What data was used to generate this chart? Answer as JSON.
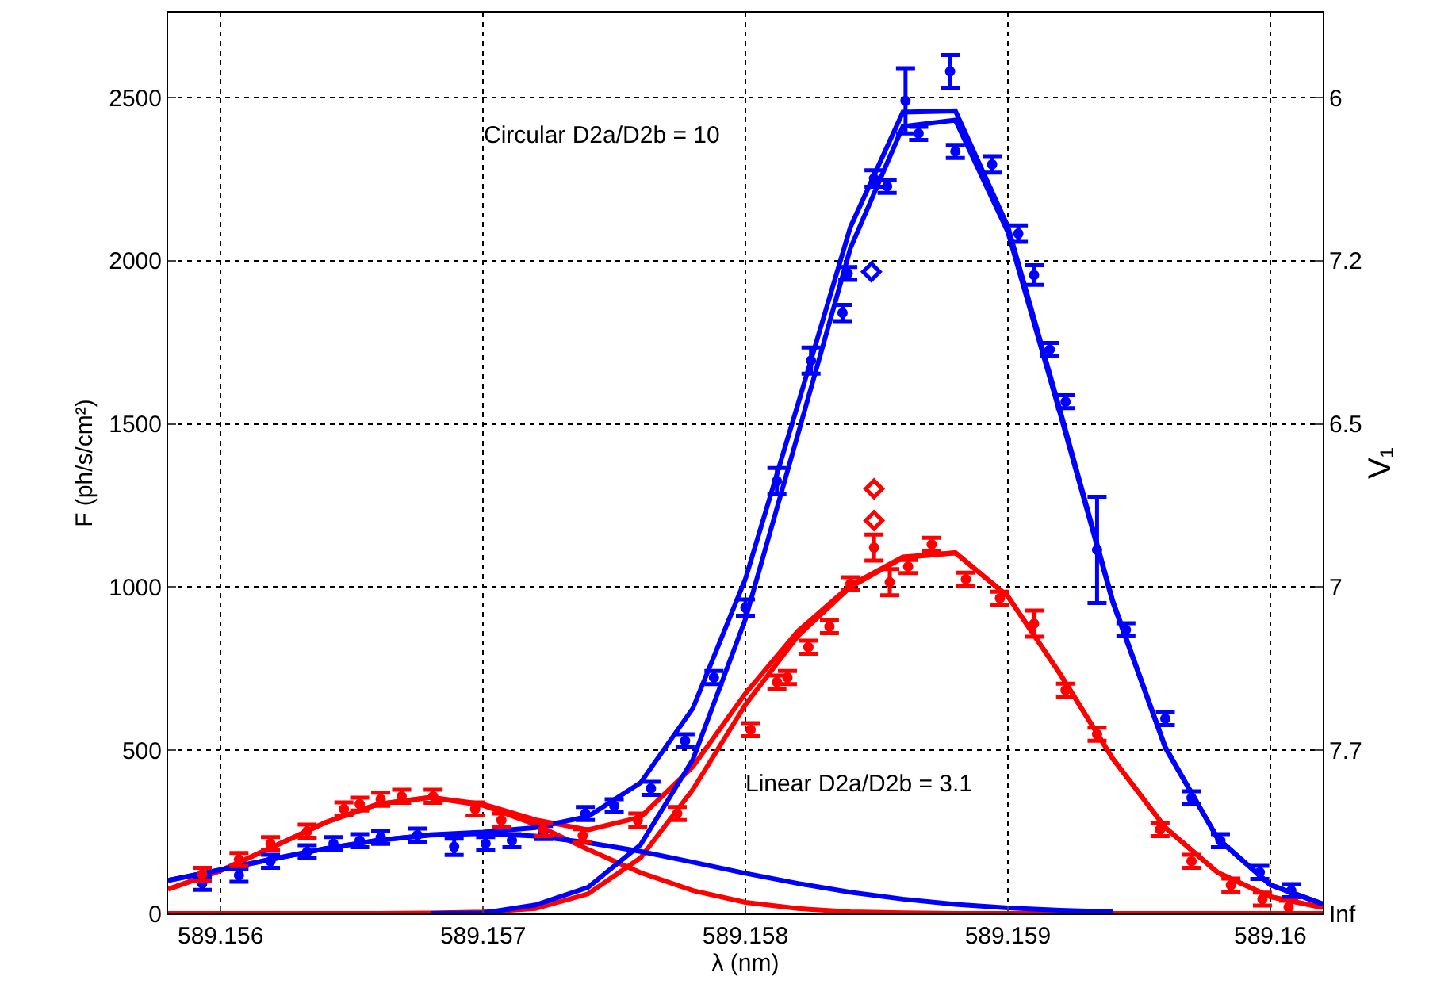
{
  "chart_data": {
    "type": "line",
    "xlabel": "λ (nm)",
    "ylabel": "F (ph/s/cm²)",
    "y2label": "V₁",
    "xlim": [
      589.1558,
      589.1602
    ],
    "xticks": [
      589.156,
      589.157,
      589.158,
      589.159,
      589.16
    ],
    "ylim": [
      0,
      2760
    ],
    "yticks": [
      0,
      500,
      1000,
      1500,
      2000,
      2500
    ],
    "y2_categories": [
      "6",
      "7.2",
      "6.5",
      "7",
      "7.7",
      "Inf"
    ],
    "grid": true,
    "annotations": [
      "Circular D2a/D2b = 10",
      "Linear D2a/D2b = 3.1"
    ],
    "series": [
      {
        "color": "#ff0000",
        "line_style": "solid",
        "x": [
          589.1558,
          589.156,
          589.1562,
          589.1564,
          589.1566,
          589.1568,
          589.157,
          589.1572,
          589.1574,
          589.1576,
          589.1578,
          589.158,
          589.1582,
          589.1584,
          589.1586,
          589.1588,
          589.159,
          589.1592,
          589.1594,
          589.1596,
          589.1598,
          589.16,
          589.1602
        ],
        "values": [
          0,
          0,
          0,
          0,
          0,
          1,
          4,
          15,
          60,
          170,
          380,
          640,
          850,
          1000,
          1090,
          1105,
          972,
          733,
          474,
          263,
          125,
          51,
          18
        ]
      },
      {
        "color": "#ff0000",
        "line_style": "solid",
        "x": [
          589.1558,
          589.156,
          589.1562,
          589.1564,
          589.1566,
          589.1568,
          589.157,
          589.1572,
          589.1574,
          589.1576,
          589.1578,
          589.158,
          589.1582,
          589.1584,
          589.1586,
          589.1588,
          589.159,
          589.1592,
          589.1594,
          589.1596,
          589.1598,
          589.16,
          589.1602
        ],
        "values": [
          74,
          131,
          204,
          279,
          335,
          355,
          331,
          272,
          196,
          125,
          70,
          34,
          15,
          5,
          2,
          0,
          0,
          0,
          0,
          0,
          0,
          0,
          0
        ]
      },
      {
        "color": "#ff0000",
        "line_style": "solid",
        "x": [
          589.1558,
          589.156,
          589.1562,
          589.1564,
          589.1566,
          589.1568,
          589.157,
          589.1572,
          589.1574,
          589.1576,
          589.1578,
          589.158,
          589.1582,
          589.1584,
          589.1586,
          589.1588,
          589.159,
          589.1592,
          589.1594,
          589.1596,
          589.1598,
          589.16,
          589.1602
        ],
        "values": [
          74,
          131,
          204,
          279,
          335,
          356,
          335,
          287,
          256,
          295,
          450,
          674,
          865,
          1005,
          1092,
          1105,
          972,
          733,
          474,
          263,
          125,
          51,
          18
        ]
      },
      {
        "color": "#0000ff",
        "line_style": "solid",
        "x": [
          589.1558,
          589.156,
          589.1562,
          589.1564,
          589.1566,
          589.1568,
          589.157,
          589.1572,
          589.1574,
          589.1576,
          589.1578,
          589.158,
          589.1582,
          589.1584,
          589.1586,
          589.1588,
          589.159,
          589.1592,
          589.1594
        ],
        "values": [
          101,
          134,
          167,
          199,
          224,
          240,
          245,
          237,
          217,
          190,
          157,
          123,
          92,
          65,
          44,
          28,
          17,
          10,
          5
        ]
      },
      {
        "color": "#0000ff",
        "line_style": "solid",
        "x": [
          589.1568,
          589.157,
          589.1572,
          589.1574,
          589.1576,
          589.1578,
          589.158,
          589.1582,
          589.1584,
          589.1586,
          589.1588,
          589.159,
          589.1592,
          589.1594,
          589.1596,
          589.1598,
          589.16,
          589.1602
        ],
        "values": [
          0,
          1,
          26,
          80,
          210,
          472,
          902,
          1468,
          2038,
          2411,
          2431,
          2088,
          1529,
          953,
          507,
          229,
          88,
          29
        ]
      },
      {
        "color": "#0000ff",
        "line_style": "solid",
        "x": [
          589.1558,
          589.156,
          589.1562,
          589.1564,
          589.1566,
          589.1568,
          589.157,
          589.1572,
          589.1574,
          589.1576,
          589.1578,
          589.158,
          589.1582,
          589.1584,
          589.1586,
          589.1588,
          589.159,
          589.1592,
          589.1594,
          589.1596,
          589.1598,
          589.16,
          589.1602
        ],
        "values": [
          101,
          134,
          167,
          199,
          224,
          241,
          249,
          263,
          297,
          400,
          629,
          1025,
          1560,
          2103,
          2455,
          2459,
          2105,
          1539,
          958,
          510,
          229,
          88,
          29
        ]
      },
      {
        "type": "scatter",
        "color": "#0000ff",
        "x": [
          589.15593,
          589.15607,
          589.15619,
          589.15633,
          589.15643,
          589.15653,
          589.15661,
          589.15675,
          589.15689,
          589.15701,
          589.15711,
          589.15723,
          589.15739,
          589.1575,
          589.15764,
          589.15777,
          589.15788,
          589.158,
          589.15812,
          589.15825,
          589.15837,
          589.15839,
          589.15849,
          589.15854,
          589.15861,
          589.15866,
          589.15878,
          589.1588,
          589.15894,
          589.15904,
          589.1591,
          589.15916,
          589.15922,
          589.15934,
          589.15945,
          589.1596,
          589.1597,
          589.15981,
          589.15996,
          589.16008
        ],
        "values": [
          92,
          117,
          160,
          189,
          214,
          223,
          233,
          240,
          204,
          214,
          223,
          248,
          306,
          330,
          383,
          529,
          723,
          937,
          1325,
          1694,
          1840,
          1961,
          2252,
          2228,
          2490,
          2390,
          2580,
          2335,
          2295,
          2083,
          1956,
          1728,
          1568,
          1114,
          869,
          597,
          354,
          223,
          126,
          70
        ],
        "errors": [
          20,
          20,
          20,
          20,
          20,
          20,
          20,
          20,
          25,
          20,
          20,
          20,
          20,
          20,
          20,
          20,
          20,
          25,
          40,
          40,
          25,
          20,
          25,
          20,
          100,
          20,
          50,
          20,
          25,
          25,
          30,
          20,
          20,
          163,
          20,
          20,
          20,
          20,
          20,
          20
        ]
      },
      {
        "type": "scatter",
        "color": "#ff0000",
        "x": [
          589.15593,
          589.15607,
          589.15619,
          589.15633,
          589.15647,
          589.15653,
          589.15661,
          589.15669,
          589.15681,
          589.15697,
          589.15707,
          589.15723,
          589.15738,
          589.15759,
          589.15774,
          589.15802,
          589.15812,
          589.15816,
          589.15824,
          589.15832,
          589.1584,
          589.15849,
          589.15855,
          589.15862,
          589.15871,
          589.15884,
          589.15897,
          589.1591,
          589.15922,
          589.15934,
          589.15958,
          589.1597,
          589.15985,
          589.15997,
          589.16007
        ],
        "values": [
          120,
          165,
          214,
          252,
          320,
          335,
          350,
          359,
          359,
          320,
          286,
          257,
          238,
          286,
          306,
          563,
          709,
          723,
          816,
          879,
          1010,
          1121,
          1015,
          1063,
          1131,
          1024,
          966,
          888,
          684,
          549,
          257,
          160,
          87,
          44,
          19
        ],
        "errors": [
          20,
          20,
          20,
          20,
          20,
          20,
          20,
          20,
          20,
          20,
          20,
          20,
          20,
          20,
          20,
          20,
          20,
          20,
          20,
          20,
          20,
          40,
          40,
          20,
          20,
          20,
          20,
          40,
          20,
          20,
          20,
          20,
          20,
          20,
          20
        ]
      },
      {
        "type": "scatter",
        "color": "#0000ff",
        "marker": "diamond",
        "x": [
          589.15848
        ],
        "values": [
          1966
        ]
      },
      {
        "type": "scatter",
        "color": "#ff0000",
        "marker": "diamond",
        "x": [
          589.15849,
          589.15849
        ],
        "values": [
          1301,
          1204
        ]
      }
    ]
  }
}
